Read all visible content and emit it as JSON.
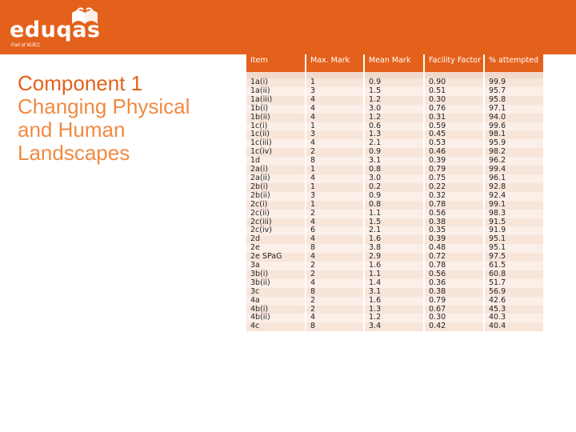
{
  "brand": {
    "name": "eduqas",
    "tagline": "Part of WJEC"
  },
  "title": {
    "line1": "Component 1",
    "line2": "Changing Physical",
    "line3": "and Human",
    "line4": "Landscapes"
  },
  "table": {
    "headers": [
      "Item",
      "Max. Mark",
      "Mean Mark",
      "Facility Factor",
      "% attempted"
    ],
    "rows": [
      [
        "1a(i)",
        "1",
        "0.9",
        "0.90",
        "99.9"
      ],
      [
        "1a(ii)",
        "3",
        "1.5",
        "0.51",
        "95.7"
      ],
      [
        "1a(iii)",
        "4",
        "1.2",
        "0.30",
        "95.8"
      ],
      [
        "1b(i)",
        "4",
        "3.0",
        "0.76",
        "97.1"
      ],
      [
        "1b(ii)",
        "4",
        "1.2",
        "0.31",
        "94.0"
      ],
      [
        "1c(i)",
        "1",
        "0.6",
        "0.59",
        "99.6"
      ],
      [
        "1c(ii)",
        "3",
        "1.3",
        "0.45",
        "98.1"
      ],
      [
        "1c(iii)",
        "4",
        "2.1",
        "0.53",
        "95.9"
      ],
      [
        "1c(iv)",
        "2",
        "0.9",
        "0.46",
        "98.2"
      ],
      [
        "1d",
        "8",
        "3.1",
        "0.39",
        "96.2"
      ],
      [
        "2a(i)",
        "1",
        "0.8",
        "0.79",
        "99.4"
      ],
      [
        "2a(ii)",
        "4",
        "3.0",
        "0.75",
        "96.1"
      ],
      [
        "2b(i)",
        "1",
        "0.2",
        "0.22",
        "92.8"
      ],
      [
        "2b(ii)",
        "3",
        "0.9",
        "0.32",
        "92.4"
      ],
      [
        "2c(i)",
        "1",
        "0.8",
        "0.78",
        "99.1"
      ],
      [
        "2c(ii)",
        "2",
        "1.1",
        "0.56",
        "98.3"
      ],
      [
        "2c(iii)",
        "4",
        "1.5",
        "0.38",
        "91.5"
      ],
      [
        "2c(iv)",
        "6",
        "2.1",
        "0.35",
        "91.9"
      ],
      [
        "2d",
        "4",
        "1.6",
        "0.39",
        "95.1"
      ],
      [
        "2e",
        "8",
        "3.8",
        "0.48",
        "95.1"
      ],
      [
        "2e SPaG",
        "4",
        "2.9",
        "0.72",
        "97.5"
      ],
      [
        "3a",
        "2",
        "1.6",
        "0.78",
        "61.5"
      ],
      [
        "3b(i)",
        "2",
        "1.1",
        "0.56",
        "60.8"
      ],
      [
        "3b(ii)",
        "4",
        "1.4",
        "0.36",
        "51.7"
      ],
      [
        "3c",
        "8",
        "3.1",
        "0.38",
        "56.9"
      ],
      [
        "4a",
        "2",
        "1.6",
        "0.79",
        "42.6"
      ],
      [
        "4b(i)",
        "2",
        "1.3",
        "0.67",
        "45.3"
      ],
      [
        "4b(ii)",
        "4",
        "1.2",
        "0.30",
        "40.3"
      ],
      [
        "4c",
        "8",
        "3.4",
        "0.42",
        "40.4"
      ]
    ]
  }
}
